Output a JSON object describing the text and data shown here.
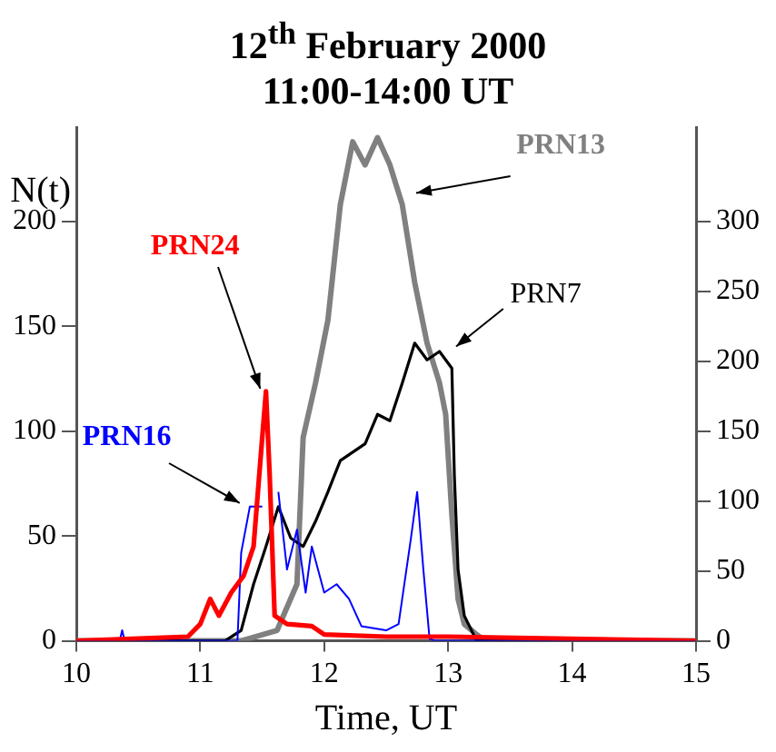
{
  "chart_data": {
    "type": "line",
    "title": "12$^{th}$ February 2000\n11:00-14:00 UT",
    "xlabel": "Time, UT",
    "ylabel": "N(t)",
    "xlim": [
      10,
      15
    ],
    "xticks": [
      10,
      11,
      12,
      13,
      14,
      15
    ],
    "ylim": [
      0,
      245
    ],
    "yticks": [
      0,
      50,
      100,
      150,
      200
    ],
    "y2lim": [
      0,
      367.5
    ],
    "y2ticks": [
      0,
      50,
      100,
      150,
      200,
      250,
      300
    ],
    "grid": false,
    "legend": false,
    "marker": "none",
    "line_style": "solid",
    "series": [
      {
        "name": "PRN13",
        "color": "#808080",
        "x": [
          10,
          11.33,
          11.62,
          11.78,
          11.83,
          11.93,
          12.03,
          12.13,
          12.23,
          12.33,
          12.43,
          12.53,
          12.63,
          12.73,
          12.83,
          12.93,
          12.98,
          13.03,
          13.08,
          13.13,
          13.23,
          13.3,
          15
        ],
        "values": [
          0,
          0,
          5,
          27,
          97,
          123,
          153,
          208,
          238,
          227,
          240,
          227,
          208,
          171,
          142,
          123,
          108,
          60,
          20,
          8,
          3,
          0,
          0
        ]
      },
      {
        "name": "PRN7",
        "color": "#000000",
        "x": [
          10,
          11.2,
          11.33,
          11.43,
          11.53,
          11.63,
          11.73,
          11.83,
          11.93,
          12.03,
          12.13,
          12.23,
          12.33,
          12.43,
          12.53,
          12.63,
          12.73,
          12.83,
          12.93,
          13.03,
          13.05,
          13.08,
          13.13,
          13.23,
          15
        ],
        "values": [
          0,
          0,
          5,
          27,
          45,
          64,
          49,
          45,
          57,
          71,
          86,
          90,
          94,
          108,
          105,
          123,
          142,
          134,
          138,
          130,
          79,
          34,
          12,
          0,
          0
        ]
      },
      {
        "name": "PRN16",
        "color": "#0000ff",
        "x": [
          10,
          10.35,
          10.37,
          10.39,
          11.3,
          11.33,
          11.4,
          11.5,
          11.58,
          11.63,
          11.7,
          11.78,
          11.85,
          11.9,
          12,
          12.1,
          12.2,
          12.3,
          12.5,
          12.6,
          12.7,
          12.75,
          12.8,
          12.85,
          12.9,
          15
        ],
        "values": [
          0,
          0,
          5,
          0,
          0,
          42,
          64,
          64,
          null,
          71,
          34,
          53,
          23,
          45,
          23,
          27,
          20,
          7,
          5,
          8,
          49,
          71,
          34,
          1,
          0,
          0
        ]
      },
      {
        "name": "PRN24",
        "color": "#ff0000",
        "x": [
          10,
          10.9,
          11,
          11.08,
          11.15,
          11.25,
          11.35,
          11.43,
          11.5,
          11.53,
          11.56,
          11.6,
          11.7,
          11.9,
          12,
          12.5,
          13,
          15
        ],
        "values": [
          0,
          2,
          8,
          20,
          12,
          23,
          31,
          45,
          97,
          119,
          79,
          12,
          8,
          7,
          3,
          2,
          2,
          0
        ]
      }
    ]
  }
}
